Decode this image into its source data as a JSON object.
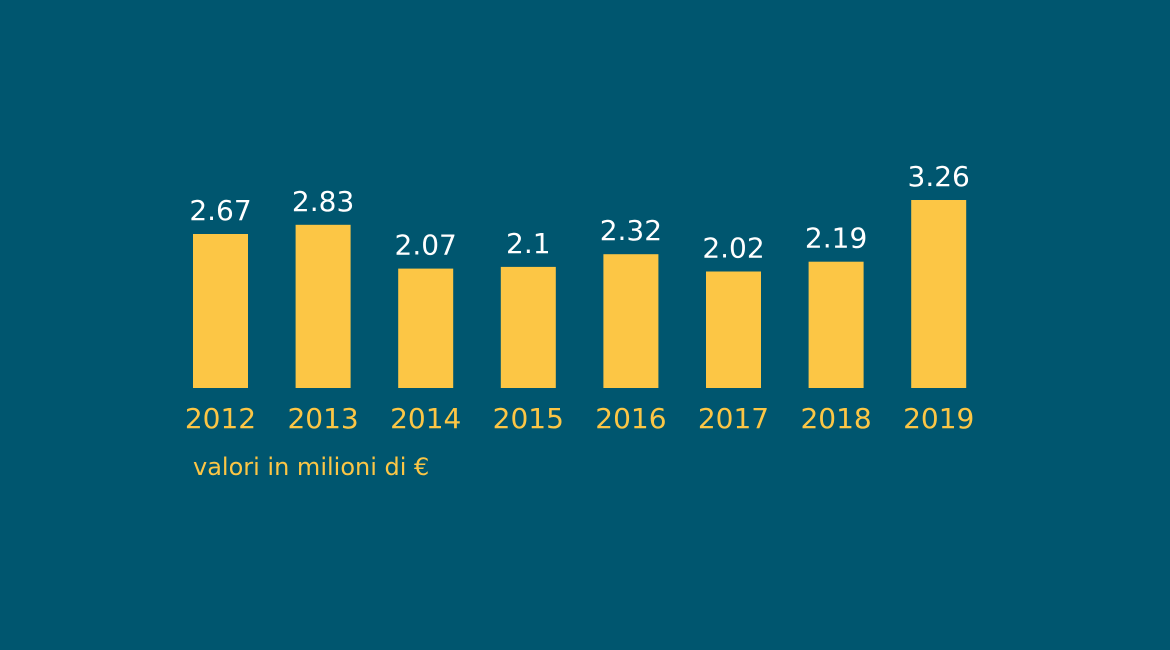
{
  "colors": {
    "background": "#00566f",
    "bar": "#fcc645",
    "value_label": "#ffffff",
    "category_label": "#fcc645"
  },
  "chart_data": {
    "type": "bar",
    "categories": [
      "2012",
      "2013",
      "2014",
      "2015",
      "2016",
      "2017",
      "2018",
      "2019"
    ],
    "values": [
      2.67,
      2.83,
      2.07,
      2.1,
      2.32,
      2.02,
      2.19,
      3.26
    ],
    "value_labels": [
      "2.67",
      "2.83",
      "2.07",
      "2.1",
      "2.32",
      "2.02",
      "2.19",
      "3.26"
    ],
    "note": "valori in milioni di €",
    "ylim": [
      0,
      3.26
    ],
    "grid": false,
    "legend": "none",
    "axes_visible": false
  }
}
